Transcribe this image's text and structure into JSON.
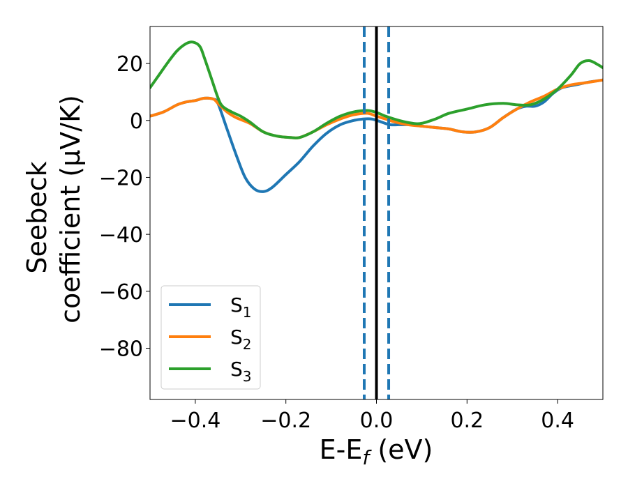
{
  "chart_data": {
    "type": "line",
    "xlabel": "E-E",
    "xlabel_sub": "f",
    "xlabel_unit": " (eV)",
    "ylabel_line1": "Seebeck",
    "ylabel_line2": "coefficient  (μV/K)",
    "xlim": [
      -0.5,
      0.5
    ],
    "ylim": [
      -98,
      33
    ],
    "xticks": [
      -0.4,
      -0.2,
      0.0,
      0.2,
      0.4
    ],
    "xtick_labels": [
      "−0.4",
      "−0.2",
      "0.0",
      "0.2",
      "0.4"
    ],
    "yticks": [
      20,
      0,
      -20,
      -40,
      -60,
      -80
    ],
    "ytick_labels": [
      "20",
      "0",
      "−20",
      "−40",
      "−60",
      "−80"
    ],
    "legend_position": "lower-left",
    "vlines": [
      {
        "x": 0.0,
        "style": "solid",
        "color": "#000000"
      },
      {
        "x": -0.027,
        "style": "dashed",
        "color": "#1f77b4"
      },
      {
        "x": 0.027,
        "style": "dashed",
        "color": "#1f77b4"
      }
    ],
    "series": [
      {
        "name": "S",
        "sub": "1",
        "color": "#1f77b4",
        "points": [
          [
            -0.5,
            1.5
          ],
          [
            -0.47,
            3
          ],
          [
            -0.44,
            5.5
          ],
          [
            -0.42,
            6.5
          ],
          [
            -0.4,
            7
          ],
          [
            -0.38,
            7.8
          ],
          [
            -0.36,
            7.5
          ],
          [
            -0.35,
            6
          ],
          [
            -0.33,
            -3
          ],
          [
            -0.31,
            -12
          ],
          [
            -0.29,
            -20
          ],
          [
            -0.27,
            -24
          ],
          [
            -0.25,
            -25
          ],
          [
            -0.23,
            -23.5
          ],
          [
            -0.2,
            -19
          ],
          [
            -0.17,
            -14.5
          ],
          [
            -0.14,
            -9
          ],
          [
            -0.11,
            -4.5
          ],
          [
            -0.08,
            -1.5
          ],
          [
            -0.05,
            0
          ],
          [
            -0.03,
            0.5
          ],
          [
            -0.01,
            0.5
          ],
          [
            0.01,
            -0.5
          ],
          [
            0.03,
            -1.5
          ],
          [
            0.05,
            -1.5
          ],
          [
            0.08,
            -1.5
          ],
          [
            0.1,
            -2
          ],
          [
            0.13,
            -2.5
          ],
          [
            0.16,
            -3
          ],
          [
            0.19,
            -4
          ],
          [
            0.22,
            -4
          ],
          [
            0.25,
            -2.5
          ],
          [
            0.28,
            1
          ],
          [
            0.31,
            4
          ],
          [
            0.33,
            5
          ],
          [
            0.35,
            5
          ],
          [
            0.37,
            6.5
          ],
          [
            0.39,
            9.5
          ],
          [
            0.41,
            11.5
          ],
          [
            0.44,
            12.5
          ],
          [
            0.47,
            13.5
          ],
          [
            0.5,
            14.2
          ]
        ]
      },
      {
        "name": "S",
        "sub": "2",
        "color": "#ff7f0e",
        "points": [
          [
            -0.5,
            1.5
          ],
          [
            -0.47,
            3
          ],
          [
            -0.44,
            5.5
          ],
          [
            -0.42,
            6.5
          ],
          [
            -0.4,
            7
          ],
          [
            -0.38,
            7.8
          ],
          [
            -0.36,
            7.5
          ],
          [
            -0.35,
            6
          ],
          [
            -0.33,
            3
          ],
          [
            -0.31,
            1
          ],
          [
            -0.28,
            -1
          ],
          [
            -0.25,
            -4
          ],
          [
            -0.22,
            -5.5
          ],
          [
            -0.19,
            -6
          ],
          [
            -0.17,
            -6
          ],
          [
            -0.14,
            -4
          ],
          [
            -0.11,
            -1.5
          ],
          [
            -0.08,
            0.5
          ],
          [
            -0.05,
            2
          ],
          [
            -0.02,
            2.5
          ],
          [
            0.0,
            1.5
          ],
          [
            0.02,
            0.5
          ],
          [
            0.04,
            -0.5
          ],
          [
            0.07,
            -1.5
          ],
          [
            0.1,
            -2
          ],
          [
            0.13,
            -2.5
          ],
          [
            0.16,
            -3
          ],
          [
            0.19,
            -4
          ],
          [
            0.22,
            -4
          ],
          [
            0.25,
            -2.5
          ],
          [
            0.28,
            1
          ],
          [
            0.31,
            4
          ],
          [
            0.34,
            6.5
          ],
          [
            0.37,
            8.5
          ],
          [
            0.4,
            11
          ],
          [
            0.43,
            12.5
          ],
          [
            0.46,
            13.2
          ],
          [
            0.5,
            14.2
          ]
        ]
      },
      {
        "name": "S",
        "sub": "3",
        "color": "#2ca02c",
        "points": [
          [
            -0.5,
            11.5
          ],
          [
            -0.48,
            16
          ],
          [
            -0.46,
            20.5
          ],
          [
            -0.44,
            24.5
          ],
          [
            -0.42,
            27
          ],
          [
            -0.405,
            27.5
          ],
          [
            -0.39,
            26
          ],
          [
            -0.38,
            22
          ],
          [
            -0.365,
            15
          ],
          [
            -0.35,
            8
          ],
          [
            -0.34,
            5
          ],
          [
            -0.32,
            3
          ],
          [
            -0.3,
            1.5
          ],
          [
            -0.28,
            -0.5
          ],
          [
            -0.25,
            -4
          ],
          [
            -0.22,
            -5.5
          ],
          [
            -0.19,
            -6
          ],
          [
            -0.17,
            -6
          ],
          [
            -0.14,
            -4
          ],
          [
            -0.11,
            -1
          ],
          [
            -0.08,
            1.5
          ],
          [
            -0.05,
            3
          ],
          [
            -0.02,
            3.5
          ],
          [
            0.0,
            2.8
          ],
          [
            0.02,
            1.5
          ],
          [
            0.05,
            0
          ],
          [
            0.08,
            -1
          ],
          [
            0.1,
            -1
          ],
          [
            0.13,
            0.5
          ],
          [
            0.16,
            2.5
          ],
          [
            0.2,
            4
          ],
          [
            0.24,
            5.5
          ],
          [
            0.28,
            6
          ],
          [
            0.31,
            5.5
          ],
          [
            0.34,
            5.5
          ],
          [
            0.37,
            7.5
          ],
          [
            0.4,
            11
          ],
          [
            0.43,
            16
          ],
          [
            0.45,
            20
          ],
          [
            0.47,
            21
          ],
          [
            0.49,
            19.5
          ],
          [
            0.5,
            18.5
          ]
        ]
      }
    ]
  }
}
